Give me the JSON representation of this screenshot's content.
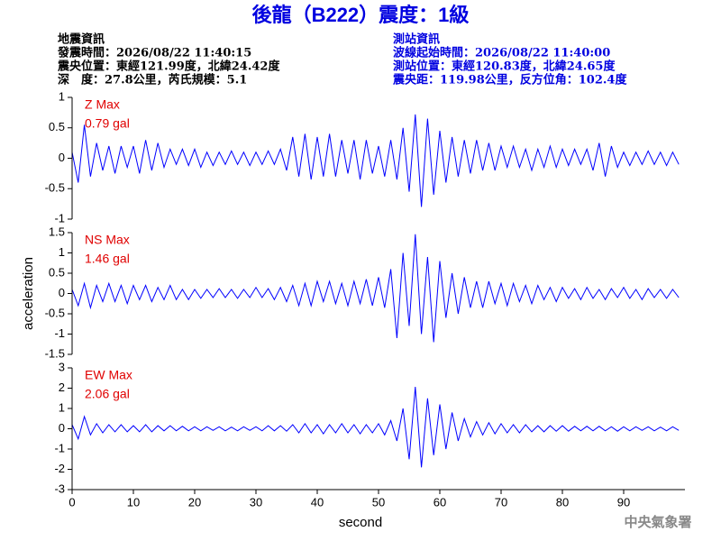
{
  "header": {
    "title": "後龍（B222）震度：1級",
    "left": [
      "地震資訊",
      "發震時間：2026/08/22 11:40:15",
      "震央位置：東經121.99度，北緯24.42度",
      "深　度：27.8公里，芮氏規模：5.1"
    ],
    "right": [
      "測站資訊",
      "波線起始時間：2026/08/22 11:40:00",
      "測站位置：東經120.83度，北緯24.65度",
      "震央距：119.98公里，反方位角：102.4度"
    ]
  },
  "footer": "中央氣象署",
  "chart_data": [
    {
      "type": "line",
      "annotations": [
        "Z Max",
        "0.79 gal"
      ],
      "color": "#0000ff",
      "annotation_color": "#e00000",
      "xlim": [
        0,
        100
      ],
      "ylim": [
        -1,
        1
      ],
      "yticks": [
        -1,
        -0.5,
        0,
        0.5,
        1
      ],
      "x": [
        0,
        1,
        2,
        3,
        4,
        5,
        6,
        7,
        8,
        9,
        10,
        11,
        12,
        13,
        14,
        15,
        16,
        17,
        18,
        19,
        20,
        21,
        22,
        23,
        24,
        25,
        26,
        27,
        28,
        29,
        30,
        31,
        32,
        33,
        34,
        35,
        36,
        37,
        38,
        39,
        40,
        41,
        42,
        43,
        44,
        45,
        46,
        47,
        48,
        49,
        50,
        51,
        52,
        53,
        54,
        55,
        56,
        57,
        58,
        59,
        60,
        61,
        62,
        63,
        64,
        65,
        66,
        67,
        68,
        69,
        70,
        71,
        72,
        73,
        74,
        75,
        76,
        77,
        78,
        79,
        80,
        81,
        82,
        83,
        84,
        85,
        86,
        87,
        88,
        89,
        90,
        91,
        92,
        93,
        94,
        95,
        96,
        97,
        98,
        99
      ],
      "values": [
        0.1,
        -0.4,
        0.55,
        -0.3,
        0.25,
        -0.2,
        0.2,
        -0.25,
        0.2,
        -0.15,
        0.2,
        -0.25,
        0.3,
        -0.2,
        0.25,
        -0.15,
        0.15,
        -0.1,
        0.15,
        -0.12,
        0.15,
        -0.15,
        0.1,
        -0.12,
        0.1,
        -0.1,
        0.12,
        -0.1,
        0.1,
        -0.12,
        0.1,
        -0.1,
        0.12,
        -0.1,
        0.15,
        -0.2,
        0.35,
        -0.3,
        0.4,
        -0.35,
        0.35,
        -0.3,
        0.4,
        -0.3,
        0.3,
        -0.25,
        0.3,
        -0.35,
        0.3,
        -0.25,
        0.2,
        -0.3,
        0.3,
        -0.35,
        0.5,
        -0.55,
        0.72,
        -0.8,
        0.65,
        -0.6,
        0.45,
        -0.4,
        0.35,
        -0.3,
        0.3,
        -0.25,
        0.3,
        -0.2,
        0.25,
        -0.2,
        0.2,
        -0.15,
        0.2,
        -0.15,
        0.15,
        -0.2,
        0.15,
        -0.15,
        0.2,
        -0.15,
        0.15,
        -0.12,
        0.15,
        -0.1,
        0.15,
        -0.2,
        0.25,
        -0.3,
        0.2,
        -0.15,
        0.1,
        -0.12,
        0.1,
        -0.1,
        0.12,
        -0.1,
        0.1,
        -0.12,
        0.1,
        -0.1
      ]
    },
    {
      "type": "line",
      "annotations": [
        "NS Max",
        "1.46 gal"
      ],
      "color": "#0000ff",
      "annotation_color": "#e00000",
      "ylabel": "acceleration",
      "xlim": [
        0,
        100
      ],
      "ylim": [
        -1.5,
        1.5
      ],
      "yticks": [
        -1.5,
        -1,
        -0.5,
        0,
        0.5,
        1,
        1.5
      ],
      "x": [
        0,
        1,
        2,
        3,
        4,
        5,
        6,
        7,
        8,
        9,
        10,
        11,
        12,
        13,
        14,
        15,
        16,
        17,
        18,
        19,
        20,
        21,
        22,
        23,
        24,
        25,
        26,
        27,
        28,
        29,
        30,
        31,
        32,
        33,
        34,
        35,
        36,
        37,
        38,
        39,
        40,
        41,
        42,
        43,
        44,
        45,
        46,
        47,
        48,
        49,
        50,
        51,
        52,
        53,
        54,
        55,
        56,
        57,
        58,
        59,
        60,
        61,
        62,
        63,
        64,
        65,
        66,
        67,
        68,
        69,
        70,
        71,
        72,
        73,
        74,
        75,
        76,
        77,
        78,
        79,
        80,
        81,
        82,
        83,
        84,
        85,
        86,
        87,
        88,
        89,
        90,
        91,
        92,
        93,
        94,
        95,
        96,
        97,
        98,
        99
      ],
      "values": [
        0.1,
        -0.3,
        0.25,
        -0.35,
        0.2,
        -0.2,
        0.25,
        -0.2,
        0.2,
        -0.25,
        0.2,
        -0.15,
        0.2,
        -0.2,
        0.15,
        -0.15,
        0.2,
        -0.15,
        0.1,
        -0.15,
        0.1,
        -0.12,
        0.1,
        -0.1,
        0.12,
        -0.1,
        0.1,
        -0.12,
        0.1,
        -0.1,
        0.15,
        -0.1,
        0.12,
        -0.15,
        0.15,
        -0.2,
        0.2,
        -0.3,
        0.25,
        -0.3,
        0.3,
        -0.2,
        0.3,
        -0.25,
        0.25,
        -0.3,
        0.3,
        -0.25,
        0.35,
        -0.3,
        0.4,
        -0.35,
        0.6,
        -1.1,
        1.0,
        -0.8,
        1.46,
        -1.0,
        0.9,
        -1.2,
        0.8,
        -0.6,
        0.5,
        -0.5,
        0.4,
        -0.35,
        0.3,
        -0.35,
        0.3,
        -0.25,
        0.25,
        -0.3,
        0.25,
        -0.2,
        0.2,
        -0.25,
        0.2,
        -0.15,
        0.15,
        -0.2,
        0.15,
        -0.12,
        0.12,
        -0.15,
        0.15,
        -0.12,
        0.1,
        -0.15,
        0.12,
        -0.1,
        0.15,
        -0.12,
        0.1,
        -0.15,
        0.12,
        -0.1,
        0.1,
        -0.12,
        0.1,
        -0.1
      ]
    },
    {
      "type": "line",
      "annotations": [
        "EW Max",
        "2.06 gal"
      ],
      "color": "#0000ff",
      "annotation_color": "#e00000",
      "xlabel": "second",
      "xlim": [
        0,
        100
      ],
      "ylim": [
        -3,
        3
      ],
      "yticks": [
        -3,
        -2,
        -1,
        0,
        1,
        2,
        3
      ],
      "xticks": [
        0,
        10,
        20,
        30,
        40,
        50,
        60,
        70,
        80,
        90
      ],
      "x": [
        0,
        1,
        2,
        3,
        4,
        5,
        6,
        7,
        8,
        9,
        10,
        11,
        12,
        13,
        14,
        15,
        16,
        17,
        18,
        19,
        20,
        21,
        22,
        23,
        24,
        25,
        26,
        27,
        28,
        29,
        30,
        31,
        32,
        33,
        34,
        35,
        36,
        37,
        38,
        39,
        40,
        41,
        42,
        43,
        44,
        45,
        46,
        47,
        48,
        49,
        50,
        51,
        52,
        53,
        54,
        55,
        56,
        57,
        58,
        59,
        60,
        61,
        62,
        63,
        64,
        65,
        66,
        67,
        68,
        69,
        70,
        71,
        72,
        73,
        74,
        75,
        76,
        77,
        78,
        79,
        80,
        81,
        82,
        83,
        84,
        85,
        86,
        87,
        88,
        89,
        90,
        91,
        92,
        93,
        94,
        95,
        96,
        97,
        98,
        99
      ],
      "values": [
        0.2,
        -0.5,
        0.6,
        -0.3,
        0.25,
        -0.2,
        0.2,
        -0.15,
        0.2,
        -0.15,
        0.15,
        -0.15,
        0.2,
        -0.15,
        0.15,
        -0.1,
        0.15,
        -0.1,
        0.12,
        -0.1,
        0.1,
        -0.1,
        0.1,
        -0.08,
        0.1,
        -0.1,
        0.08,
        -0.1,
        0.1,
        -0.08,
        0.1,
        -0.1,
        0.15,
        -0.1,
        0.15,
        -0.12,
        0.2,
        -0.2,
        0.25,
        -0.2,
        0.2,
        -0.25,
        0.2,
        -0.2,
        0.25,
        -0.2,
        0.2,
        -0.25,
        0.2,
        -0.2,
        0.25,
        -0.3,
        0.4,
        -0.6,
        1.0,
        -1.5,
        2.06,
        -1.9,
        1.5,
        -1.3,
        1.2,
        -1.0,
        0.8,
        -0.6,
        0.5,
        -0.4,
        0.35,
        -0.3,
        0.3,
        -0.25,
        0.25,
        -0.2,
        0.2,
        -0.2,
        0.2,
        -0.15,
        0.15,
        -0.15,
        0.15,
        -0.12,
        0.15,
        -0.12,
        0.12,
        -0.1,
        0.12,
        -0.1,
        0.12,
        -0.1,
        0.1,
        -0.12,
        0.1,
        -0.1,
        0.1,
        -0.08,
        0.1,
        -0.1,
        0.08,
        -0.1,
        0.1,
        -0.08
      ]
    }
  ]
}
